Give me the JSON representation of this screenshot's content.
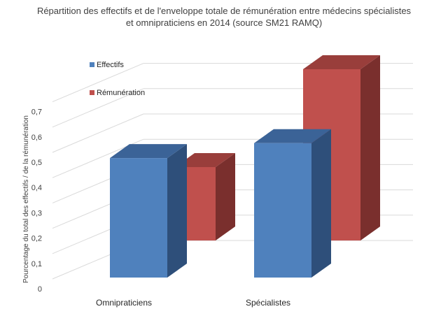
{
  "chart_data": {
    "type": "bar",
    "title_line1": "Répartition des effectifs et de l'enveloppe totale de rémunération entre médecins spécialistes",
    "title_line2": "et omnipraticiens en 2014 (source SM21 RAMQ)",
    "ylabel": "Pourcentage du total des effectifs / de la rémunération",
    "xlabel": "",
    "categories": [
      "Omnipraticiens",
      "Spécialistes"
    ],
    "series": [
      {
        "name": "Effectifs",
        "values": [
          0.48,
          0.54
        ],
        "color": "#4f81bd",
        "side_color": "#2e4f7a",
        "top_color": "#3b6397"
      },
      {
        "name": "Rémunération",
        "values": [
          0.3,
          0.7
        ],
        "color": "#c0504d",
        "side_color": "#7a2f2d",
        "top_color": "#993e3b"
      }
    ],
    "ylim": [
      0,
      0.7
    ],
    "yticks": [
      "0",
      "0,1",
      "0,2",
      "0,3",
      "0,4",
      "0,5",
      "0,6",
      "0,7"
    ],
    "grid": true,
    "legend_position": "left, inside plot"
  }
}
